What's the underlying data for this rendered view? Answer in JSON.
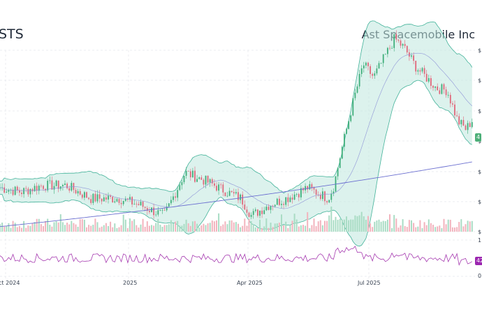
{
  "header": {
    "ticker": "STS",
    "company": "Ast Spacemobile Inc"
  },
  "chart_data": {
    "type": "candlestick",
    "price_axis": {
      "tick_labels": [
        "$",
        "$",
        "$",
        "$",
        "$",
        "$",
        "$"
      ],
      "side": "right",
      "grid": true
    },
    "rsi_axis": {
      "tick_labels": [
        "1",
        "0"
      ],
      "side": "right"
    },
    "x_tick_labels": [
      "ct 2024",
      "2025",
      "Apr 2025",
      "Jul 2025"
    ],
    "last_price_tag": "4",
    "rsi_tag": "42",
    "overlays": [
      "candles",
      "bollinger-bands",
      "moving-average-20",
      "moving-average-200",
      "volume",
      "rsi"
    ],
    "colors": {
      "up": "#3fae7a",
      "down": "#e0677a",
      "band_fill": "#bfe8df",
      "band_line": "#44b39a",
      "ma_long": "#6b6fd0",
      "rsi": "#a63ab0",
      "price_tag": "#4caf78",
      "rsi_tag": "#9c27b0"
    },
    "anchors": [
      {
        "x": 0,
        "p": 0.71
      },
      {
        "x": 30,
        "p": 0.69
      },
      {
        "x": 60,
        "p": 0.72
      },
      {
        "x": 95,
        "p": 0.72
      },
      {
        "x": 130,
        "p": 0.66
      },
      {
        "x": 170,
        "p": 0.66
      },
      {
        "x": 200,
        "p": 0.63
      },
      {
        "x": 235,
        "p": 0.58
      },
      {
        "x": 250,
        "p": 0.68
      },
      {
        "x": 265,
        "p": 0.78
      },
      {
        "x": 295,
        "p": 0.74
      },
      {
        "x": 325,
        "p": 0.69
      },
      {
        "x": 345,
        "p": 0.66
      },
      {
        "x": 360,
        "p": 0.58
      },
      {
        "x": 385,
        "p": 0.63
      },
      {
        "x": 410,
        "p": 0.66
      },
      {
        "x": 440,
        "p": 0.71
      },
      {
        "x": 470,
        "p": 0.66
      },
      {
        "x": 478,
        "p": 0.72
      },
      {
        "x": 490,
        "p": 0.9
      },
      {
        "x": 505,
        "p": 1.1
      },
      {
        "x": 520,
        "p": 1.28
      },
      {
        "x": 535,
        "p": 1.22
      },
      {
        "x": 550,
        "p": 1.31
      },
      {
        "x": 565,
        "p": 1.4
      },
      {
        "x": 580,
        "p": 1.35
      },
      {
        "x": 595,
        "p": 1.27
      },
      {
        "x": 610,
        "p": 1.22
      },
      {
        "x": 625,
        "p": 1.17
      },
      {
        "x": 640,
        "p": 1.16
      },
      {
        "x": 655,
        "p": 1.02
      },
      {
        "x": 667,
        "p": 0.98
      },
      {
        "x": 680,
        "p": 1.04
      }
    ]
  }
}
